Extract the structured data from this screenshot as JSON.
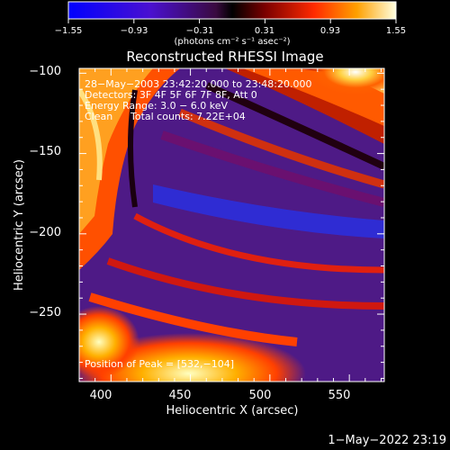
{
  "chart_data": {
    "type": "heatmap",
    "title": "Reconstructed RHESSI Image",
    "xlabel": "Heliocentric X (arcsec)",
    "ylabel": "Heliocentric Y (arcsec)",
    "xlim": [
      380,
      572
    ],
    "ylim": [
      -292,
      -97
    ],
    "x_ticks": [
      400,
      450,
      500,
      550
    ],
    "y_ticks": [
      -100,
      -150,
      -200,
      -250
    ],
    "x_tick_labels": [
      "400",
      "450",
      "500",
      "550"
    ],
    "y_tick_labels": [
      "−100",
      "−150",
      "−200",
      "−250"
    ],
    "colorbar": {
      "ticks": [
        "−1.55",
        "−0.93",
        "−0.31",
        "0.31",
        "0.93",
        "1.55"
      ],
      "range": [
        -1.55,
        1.55
      ],
      "unit": "(photons cm⁻² s⁻¹ asec⁻²)",
      "colormap": "blue-purple-red-yellow-white"
    },
    "annotations": [
      "28−May−2003 23:42:20.000 to 23:48:20.000",
      "Detectors: 3F 4F 5F 6F 7F 8F, Att 0",
      "Energy Range: 3.0 − 6.0 keV",
      "Clean",
      "Total counts: 7.22E+04",
      "Position of Peak = [532,−104]"
    ],
    "peak": [
      532,
      -104
    ],
    "total_counts": "7.22E+04"
  },
  "footer": {
    "timestamp": "1−May−2022 23:19"
  }
}
